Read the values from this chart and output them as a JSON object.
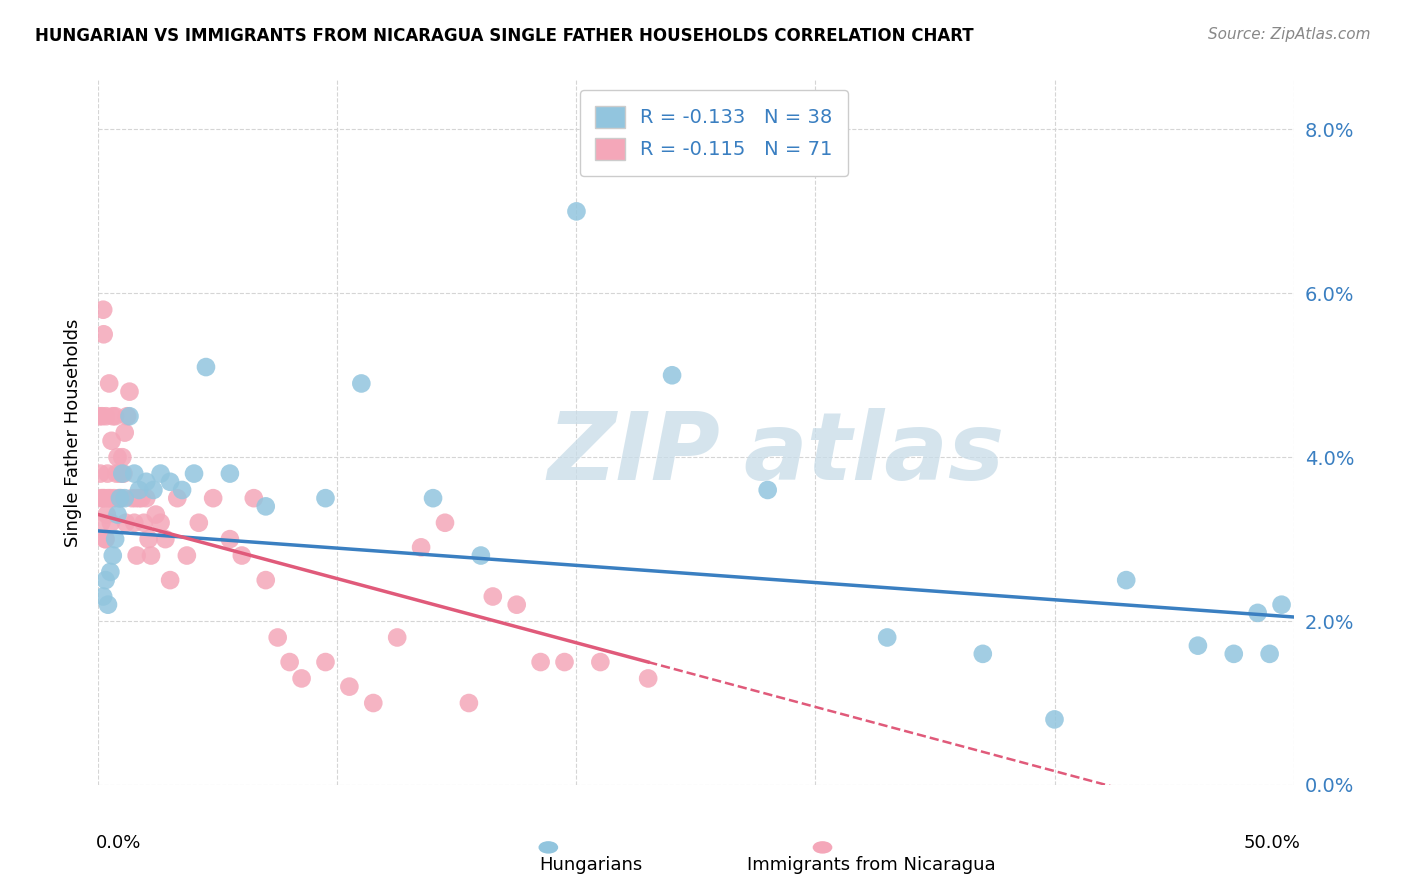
{
  "title": "HUNGARIAN VS IMMIGRANTS FROM NICARAGUA SINGLE FATHER HOUSEHOLDS CORRELATION CHART",
  "source": "Source: ZipAtlas.com",
  "ylabel": "Single Father Households",
  "ytick_vals": [
    0.0,
    2.0,
    4.0,
    6.0,
    8.0
  ],
  "xlim": [
    0,
    50
  ],
  "ylim": [
    0,
    8.6
  ],
  "legend1_label": "R = -0.133   N = 38",
  "legend2_label": "R = -0.115   N = 71",
  "legend_bottom_1": "Hungarians",
  "legend_bottom_2": "Immigrants from Nicaragua",
  "blue_color": "#92c5de",
  "pink_color": "#f4a7b9",
  "blue_line_color": "#3a7fc1",
  "pink_line_color": "#e05a7a",
  "watermark_zip": "ZIP",
  "watermark_atlas": "atlas",
  "blue_x": [
    0.2,
    0.3,
    0.4,
    0.5,
    0.6,
    0.7,
    0.8,
    0.9,
    1.0,
    1.1,
    1.3,
    1.5,
    1.7,
    2.0,
    2.3,
    2.6,
    3.0,
    3.5,
    4.0,
    4.5,
    5.5,
    7.0,
    9.5,
    11.0,
    14.0,
    16.0,
    20.0,
    24.0,
    28.0,
    33.0,
    37.0,
    40.0,
    43.0,
    46.0,
    47.5,
    48.5,
    49.0,
    49.5
  ],
  "blue_y": [
    2.3,
    2.5,
    2.2,
    2.6,
    2.8,
    3.0,
    3.3,
    3.5,
    3.8,
    3.5,
    4.5,
    3.8,
    3.6,
    3.7,
    3.6,
    3.8,
    3.7,
    3.6,
    3.8,
    5.1,
    3.8,
    3.4,
    3.5,
    4.9,
    3.5,
    2.8,
    7.0,
    5.0,
    3.6,
    1.8,
    1.6,
    0.8,
    2.5,
    1.7,
    1.6,
    2.1,
    1.6,
    2.2
  ],
  "pink_x": [
    0.05,
    0.08,
    0.1,
    0.12,
    0.15,
    0.18,
    0.2,
    0.22,
    0.25,
    0.28,
    0.3,
    0.32,
    0.35,
    0.38,
    0.4,
    0.45,
    0.5,
    0.52,
    0.55,
    0.6,
    0.65,
    0.7,
    0.75,
    0.8,
    0.85,
    0.9,
    0.95,
    1.0,
    1.05,
    1.1,
    1.15,
    1.2,
    1.3,
    1.4,
    1.5,
    1.55,
    1.6,
    1.7,
    1.8,
    1.9,
    2.0,
    2.1,
    2.2,
    2.4,
    2.6,
    2.8,
    3.0,
    3.3,
    3.7,
    4.2,
    4.8,
    5.5,
    6.0,
    6.5,
    7.0,
    7.5,
    8.0,
    8.5,
    9.5,
    10.5,
    11.5,
    12.5,
    13.5,
    14.5,
    15.5,
    16.5,
    17.5,
    18.5,
    19.5,
    21.0,
    23.0
  ],
  "pink_y": [
    4.5,
    3.8,
    3.5,
    3.2,
    4.5,
    3.5,
    5.8,
    5.5,
    3.5,
    3.0,
    3.0,
    4.5,
    3.3,
    3.8,
    3.5,
    4.9,
    3.5,
    3.2,
    4.2,
    4.5,
    3.5,
    4.5,
    3.8,
    4.0,
    3.5,
    3.8,
    3.5,
    4.0,
    3.8,
    4.3,
    3.2,
    4.5,
    4.8,
    3.5,
    3.2,
    3.5,
    2.8,
    3.5,
    3.5,
    3.2,
    3.5,
    3.0,
    2.8,
    3.3,
    3.2,
    3.0,
    2.5,
    3.5,
    2.8,
    3.2,
    3.5,
    3.0,
    2.8,
    3.5,
    2.5,
    1.8,
    1.5,
    1.3,
    1.5,
    1.2,
    1.0,
    1.8,
    2.9,
    3.2,
    1.0,
    2.3,
    2.2,
    1.5,
    1.5,
    1.5,
    1.3
  ]
}
